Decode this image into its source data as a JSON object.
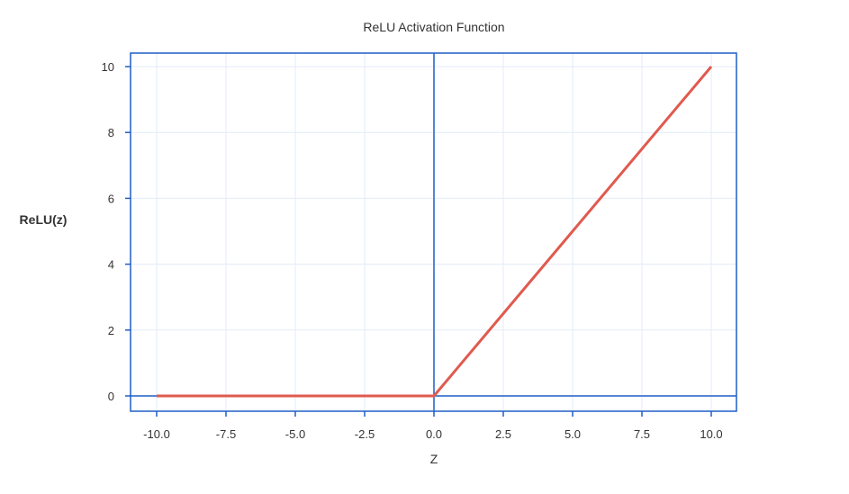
{
  "chart_data": {
    "type": "line",
    "title": "ReLU Activation Function",
    "xlabel": "Z",
    "ylabel": "ReLU(z)",
    "xlim": [
      -11,
      11
    ],
    "ylim": [
      -0.5,
      10.4
    ],
    "xticks": [
      -10,
      -7.5,
      -5,
      -2.5,
      0,
      2.5,
      5,
      7.5,
      10
    ],
    "xtick_labels": [
      "-10.0",
      "-7.5",
      "-5.0",
      "-2.5",
      "0.0",
      "2.5",
      "5.0",
      "7.5",
      "10.0"
    ],
    "yticks": [
      0,
      2,
      4,
      6,
      8,
      10
    ],
    "ytick_labels": [
      "0",
      "2",
      "4",
      "6",
      "8",
      "10"
    ],
    "grid": true,
    "series": [
      {
        "x": [
          -10,
          0,
          10
        ],
        "y": [
          0,
          0,
          10
        ],
        "color": "#e05a4f"
      }
    ],
    "colors": {
      "axis": "#1f5fc6",
      "grid": "#e3ebf8",
      "line": "#e05a4f"
    }
  }
}
